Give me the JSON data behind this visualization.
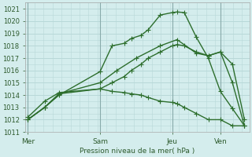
{
  "xlabel": "Pression niveau de la mer( hPa )",
  "bg_color": "#d4eded",
  "grid_color": "#b8d8d8",
  "line_color": "#2d6e2d",
  "ylim": [
    1011,
    1021.5
  ],
  "yticks": [
    1011,
    1012,
    1013,
    1014,
    1015,
    1016,
    1017,
    1018,
    1019,
    1020,
    1021
  ],
  "xtick_labels": [
    "Mer",
    "Sam",
    "Jeu",
    "Ven"
  ],
  "xtick_positions": [
    0,
    3,
    6,
    8
  ],
  "xlim": [
    -0.1,
    9.2
  ],
  "lines": [
    {
      "x": [
        0,
        0.7,
        1.3,
        3,
        3.5,
        4,
        4.3,
        4.7,
        5,
        5.5,
        6,
        6.2,
        6.5,
        7,
        7.5,
        8,
        8.5,
        9.0
      ],
      "y": [
        1012,
        1013,
        1014,
        1015.9,
        1018.0,
        1018.2,
        1018.6,
        1018.85,
        1019.3,
        1020.5,
        1020.7,
        1020.75,
        1020.7,
        1018.7,
        1017.0,
        1014.3,
        1012.9,
        1011.5
      ],
      "marker": "P",
      "ms": 3,
      "lw": 1.0
    },
    {
      "x": [
        0,
        0.7,
        1.3,
        3,
        3.5,
        4,
        4.3,
        4.7,
        5,
        5.5,
        6,
        6.2,
        6.5,
        7,
        7.5,
        8,
        8.5,
        9.0
      ],
      "y": [
        1012,
        1013,
        1014.1,
        1014.5,
        1015.0,
        1015.5,
        1016.0,
        1016.5,
        1017.0,
        1017.5,
        1018.0,
        1018.1,
        1018.0,
        1017.5,
        1017.2,
        1017.5,
        1015.0,
        1011.5
      ],
      "marker": "P",
      "ms": 3,
      "lw": 1.0
    },
    {
      "x": [
        0,
        0.7,
        1.3,
        3,
        3.5,
        4,
        4.3,
        4.7,
        5,
        5.5,
        6,
        6.2,
        6.5,
        7,
        7.5,
        8,
        8.5,
        9.0
      ],
      "y": [
        1012.2,
        1013.5,
        1014.2,
        1014.5,
        1014.3,
        1014.2,
        1014.1,
        1014.0,
        1013.8,
        1013.5,
        1013.4,
        1013.3,
        1013.0,
        1012.5,
        1012.0,
        1012.0,
        1011.5,
        1011.5
      ],
      "marker": "P",
      "ms": 3,
      "lw": 1.0
    }
  ],
  "sparse_line": {
    "x": [
      0,
      0.7,
      1.3,
      3,
      3.7,
      4.5,
      5.5,
      6.2,
      7,
      7.5,
      8,
      8.5,
      9.0
    ],
    "y": [
      1012,
      1013,
      1014.1,
      1015.0,
      1016.0,
      1017.0,
      1018.0,
      1018.5,
      1017.4,
      1017.2,
      1017.5,
      1016.5,
      1012.0
    ],
    "marker": "P",
    "ms": 3,
    "lw": 1.0
  },
  "vline_positions": [
    0,
    3,
    6,
    8
  ],
  "fig_width": 3.2,
  "fig_height": 2.0,
  "dpi": 100
}
